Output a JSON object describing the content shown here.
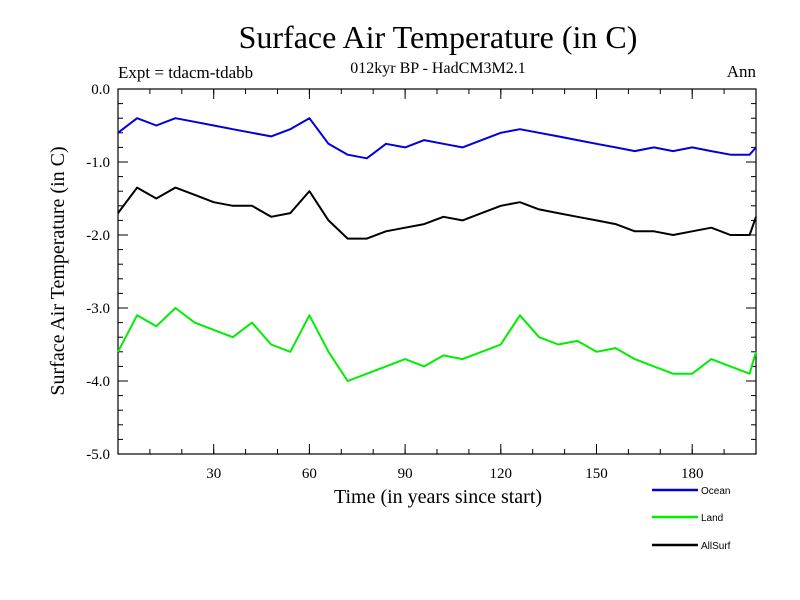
{
  "chart_data": {
    "type": "line",
    "title": "Surface Air Temperature (in C)",
    "subtitle": "012kyr BP - HadCM3M2.1",
    "expt_label": "Expt = tdacm-tdabb",
    "period_label": "Ann",
    "xlabel": "Time (in years since start)",
    "ylabel": "Surface Air Temperature (in C)",
    "xlim": [
      0,
      200
    ],
    "ylim": [
      -5.0,
      0.0
    ],
    "x_ticks": [
      30,
      60,
      90,
      120,
      150,
      180
    ],
    "y_ticks": [
      0.0,
      -1.0,
      -2.0,
      -3.0,
      -4.0,
      -5.0
    ],
    "y_tick_labels": [
      "0.0",
      "-1.0",
      "-2.0",
      "-3.0",
      "-4.0",
      "-5.0"
    ],
    "x_tick_labels": [
      "30",
      "60",
      "90",
      "120",
      "150",
      "180"
    ],
    "series": [
      {
        "name": "Ocean",
        "color": "#0000dd",
        "x": [
          0,
          6,
          12,
          18,
          24,
          30,
          36,
          42,
          48,
          54,
          60,
          66,
          72,
          78,
          84,
          90,
          96,
          102,
          108,
          114,
          120,
          126,
          132,
          138,
          144,
          150,
          156,
          162,
          168,
          174,
          180,
          186,
          192,
          198,
          200
        ],
        "values": [
          -0.6,
          -0.4,
          -0.5,
          -0.4,
          -0.45,
          -0.5,
          -0.55,
          -0.6,
          -0.65,
          -0.55,
          -0.4,
          -0.75,
          -0.9,
          -0.95,
          -0.75,
          -0.8,
          -0.7,
          -0.75,
          -0.8,
          -0.7,
          -0.6,
          -0.55,
          -0.6,
          -0.65,
          -0.7,
          -0.75,
          -0.8,
          -0.85,
          -0.8,
          -0.85,
          -0.8,
          -0.85,
          -0.9,
          -0.9,
          -0.8
        ]
      },
      {
        "name": "Land",
        "color": "#00ee00",
        "x": [
          0,
          6,
          12,
          18,
          24,
          30,
          36,
          42,
          48,
          54,
          60,
          66,
          72,
          78,
          84,
          90,
          96,
          102,
          108,
          114,
          120,
          126,
          132,
          138,
          144,
          150,
          156,
          162,
          168,
          174,
          180,
          186,
          192,
          198,
          200
        ],
        "values": [
          -3.6,
          -3.1,
          -3.25,
          -3.0,
          -3.2,
          -3.3,
          -3.4,
          -3.2,
          -3.5,
          -3.6,
          -3.1,
          -3.6,
          -4.0,
          -3.9,
          -3.8,
          -3.7,
          -3.8,
          -3.65,
          -3.7,
          -3.6,
          -3.5,
          -3.1,
          -3.4,
          -3.5,
          -3.45,
          -3.6,
          -3.55,
          -3.7,
          -3.8,
          -3.9,
          -3.9,
          -3.7,
          -3.8,
          -3.9,
          -3.6
        ]
      },
      {
        "name": "AllSurf",
        "color": "#000000",
        "x": [
          0,
          6,
          12,
          18,
          24,
          30,
          36,
          42,
          48,
          54,
          60,
          66,
          72,
          78,
          84,
          90,
          96,
          102,
          108,
          114,
          120,
          126,
          132,
          138,
          144,
          150,
          156,
          162,
          168,
          174,
          180,
          186,
          192,
          198,
          200
        ],
        "values": [
          -1.7,
          -1.35,
          -1.5,
          -1.35,
          -1.45,
          -1.55,
          -1.6,
          -1.6,
          -1.75,
          -1.7,
          -1.4,
          -1.8,
          -2.05,
          -2.05,
          -1.95,
          -1.9,
          -1.85,
          -1.75,
          -1.8,
          -1.7,
          -1.6,
          -1.55,
          -1.65,
          -1.7,
          -1.75,
          -1.8,
          -1.85,
          -1.95,
          -1.95,
          -2.0,
          -1.95,
          -1.9,
          -2.0,
          -2.0,
          -1.75
        ]
      }
    ],
    "legend": {
      "placement": "bottom-right",
      "order": [
        "Ocean",
        "Land",
        "AllSurf"
      ]
    }
  }
}
